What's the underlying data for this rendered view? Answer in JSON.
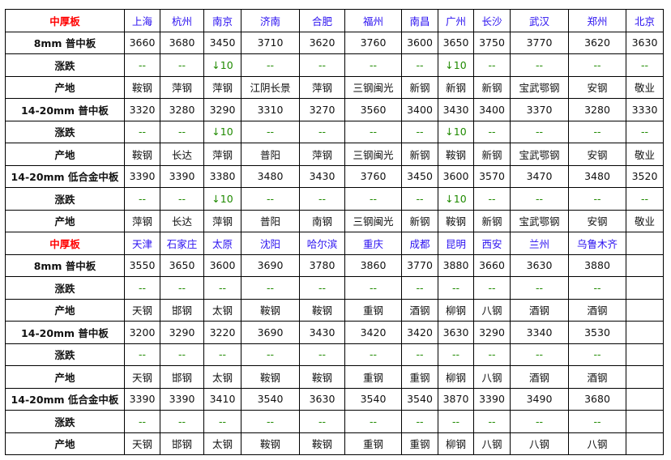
{
  "colors": {
    "title": "#ff0000",
    "city": "#2a10f0",
    "change": "#1f8a00"
  },
  "sections": [
    {
      "title": "中厚板",
      "cities": [
        "上海",
        "杭州",
        "南京",
        "济南",
        "合肥",
        "福州",
        "南昌",
        "广州",
        "长沙",
        "武汉",
        "郑州",
        "北京"
      ],
      "rows": [
        {
          "label": "8mm 普中板",
          "type": "price",
          "values": [
            "3660",
            "3680",
            "3450",
            "3710",
            "3620",
            "3760",
            "3600",
            "3650",
            "3750",
            "3770",
            "3620",
            "3630"
          ]
        },
        {
          "label": "涨跌",
          "type": "change",
          "values": [
            "--",
            "--",
            "↓10",
            "--",
            "--",
            "--",
            "--",
            "↓10",
            "--",
            "--",
            "--",
            "--"
          ]
        },
        {
          "label": "产地",
          "type": "origin",
          "values": [
            "鞍钢",
            "萍钢",
            "萍钢",
            "江阴长景",
            "萍钢",
            "三钢闽光",
            "新钢",
            "新钢",
            "新钢",
            "宝武鄂钢",
            "安钢",
            "敬业"
          ]
        },
        {
          "label": "14-20mm 普中板",
          "type": "price",
          "values": [
            "3320",
            "3280",
            "3290",
            "3310",
            "3270",
            "3560",
            "3400",
            "3430",
            "3400",
            "3370",
            "3280",
            "3330"
          ]
        },
        {
          "label": "涨跌",
          "type": "change",
          "values": [
            "--",
            "--",
            "↓10",
            "--",
            "--",
            "--",
            "--",
            "↓10",
            "--",
            "--",
            "--",
            "--"
          ]
        },
        {
          "label": "产地",
          "type": "origin",
          "values": [
            "鞍钢",
            "长达",
            "萍钢",
            "普阳",
            "萍钢",
            "三钢闽光",
            "新钢",
            "鞍钢",
            "新钢",
            "宝武鄂钢",
            "安钢",
            "敬业"
          ]
        },
        {
          "label": "14-20mm 低合金中板",
          "type": "price",
          "values": [
            "3390",
            "3390",
            "3380",
            "3480",
            "3430",
            "3760",
            "3450",
            "3600",
            "3570",
            "3470",
            "3480",
            "3520"
          ]
        },
        {
          "label": "涨跌",
          "type": "change",
          "values": [
            "--",
            "--",
            "↓10",
            "--",
            "--",
            "--",
            "--",
            "↓10",
            "--",
            "--",
            "--",
            "--"
          ]
        },
        {
          "label": "产地",
          "type": "origin",
          "values": [
            "萍钢",
            "长达",
            "萍钢",
            "普阳",
            "南钢",
            "三钢闽光",
            "新钢",
            "鞍钢",
            "新钢",
            "宝武鄂钢",
            "安钢",
            "敬业"
          ]
        }
      ]
    },
    {
      "title": "中厚板",
      "cities": [
        "天津",
        "石家庄",
        "太原",
        "沈阳",
        "哈尔滨",
        "重庆",
        "成都",
        "昆明",
        "西安",
        "兰州",
        "乌鲁木齐",
        ""
      ],
      "rows": [
        {
          "label": "8mm 普中板",
          "type": "price",
          "values": [
            "3550",
            "3650",
            "3600",
            "3690",
            "3780",
            "3860",
            "3770",
            "3880",
            "3660",
            "3630",
            "3880",
            ""
          ]
        },
        {
          "label": "涨跌",
          "type": "change",
          "values": [
            "--",
            "--",
            "--",
            "--",
            "--",
            "--",
            "--",
            "--",
            "--",
            "--",
            "--",
            ""
          ]
        },
        {
          "label": "产地",
          "type": "origin",
          "values": [
            "天钢",
            "邯钢",
            "太钢",
            "鞍钢",
            "鞍钢",
            "重钢",
            "酒钢",
            "柳钢",
            "八钢",
            "酒钢",
            "酒钢",
            ""
          ]
        },
        {
          "label": "14-20mm 普中板",
          "type": "price",
          "values": [
            "3200",
            "3290",
            "3220",
            "3690",
            "3430",
            "3420",
            "3420",
            "3630",
            "3290",
            "3340",
            "3530",
            ""
          ]
        },
        {
          "label": "涨跌",
          "type": "change",
          "values": [
            "--",
            "--",
            "--",
            "--",
            "--",
            "--",
            "--",
            "--",
            "--",
            "--",
            "--",
            ""
          ]
        },
        {
          "label": "产地",
          "type": "origin",
          "values": [
            "天钢",
            "邯钢",
            "太钢",
            "鞍钢",
            "鞍钢",
            "重钢",
            "重钢",
            "柳钢",
            "八钢",
            "酒钢",
            "酒钢",
            ""
          ]
        },
        {
          "label": "14-20mm 低合金中板",
          "type": "price",
          "values": [
            "3390",
            "3390",
            "3410",
            "3540",
            "3630",
            "3540",
            "3540",
            "3870",
            "3390",
            "3490",
            "3680",
            ""
          ]
        },
        {
          "label": "涨跌",
          "type": "change",
          "values": [
            "--",
            "--",
            "--",
            "--",
            "--",
            "--",
            "--",
            "--",
            "--",
            "--",
            "--",
            ""
          ]
        },
        {
          "label": "产地",
          "type": "origin",
          "values": [
            "天钢",
            "邯钢",
            "太钢",
            "鞍钢",
            "鞍钢",
            "重钢",
            "重钢",
            "柳钢",
            "八钢",
            "八钢",
            "八钢",
            ""
          ]
        }
      ]
    }
  ]
}
